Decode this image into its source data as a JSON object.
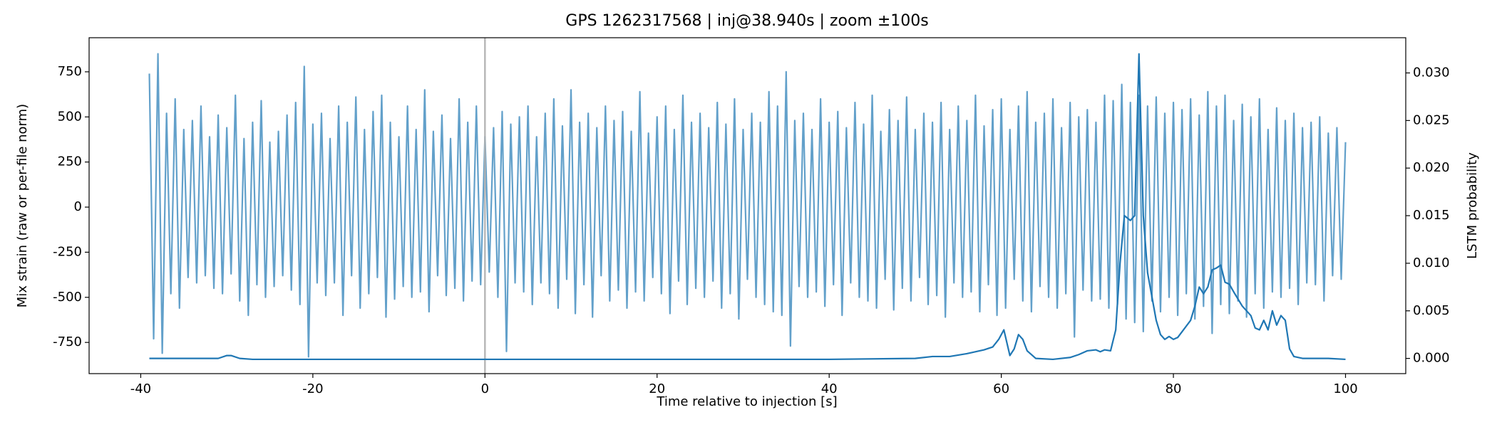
{
  "chart_data": {
    "type": "line",
    "title": "GPS 1262317568 | inj@38.940s | zoom ±100s",
    "xlabel": "Time relative to injection [s]",
    "ylabel": "Mix strain (raw or per-file norm)",
    "y2label": "LSTM probability",
    "xlim": [
      -46,
      107
    ],
    "xticks": [
      -40,
      -20,
      0,
      20,
      40,
      60,
      80,
      100
    ],
    "ylim": [
      -923,
      939
    ],
    "yticks": [
      -750,
      -500,
      -250,
      0,
      250,
      500,
      750
    ],
    "y2lim": [
      -0.0016,
      0.0337
    ],
    "y2ticks": [
      {
        "value": 0,
        "label": "0.000"
      },
      {
        "value": 0.005,
        "label": "0.005"
      },
      {
        "value": 0.01,
        "label": "0.010"
      },
      {
        "value": 0.015,
        "label": "0.015"
      },
      {
        "value": 0.02,
        "label": "0.020"
      },
      {
        "value": 0.025,
        "label": "0.025"
      },
      {
        "value": 0.03,
        "label": "0.030"
      }
    ],
    "vline": 0,
    "vline_color": "#b0b0b0",
    "series": [
      {
        "color": "#1f77b4",
        "alpha": 0.7,
        "axis": "y",
        "x": [
          -39,
          -38.5,
          -38,
          -37.5,
          -37,
          -36.5,
          -36,
          -35.5,
          -35,
          -34.5,
          -34,
          -33.5,
          -33,
          -32.5,
          -32,
          -31.5,
          -31,
          -30.5,
          -30,
          -29.5,
          -29,
          -28.5,
          -28,
          -27.5,
          -27,
          -26.5,
          -26,
          -25.5,
          -25,
          -24.5,
          -24,
          -23.5,
          -23,
          -22.5,
          -22,
          -21.5,
          -21,
          -20.5,
          -20,
          -19.5,
          -19,
          -18.5,
          -18,
          -17.5,
          -17,
          -16.5,
          -16,
          -15.5,
          -15,
          -14.5,
          -14,
          -13.5,
          -13,
          -12.5,
          -12,
          -11.5,
          -11,
          -10.5,
          -10,
          -9.5,
          -9,
          -8.5,
          -8,
          -7.5,
          -7,
          -6.5,
          -6,
          -5.5,
          -5,
          -4.5,
          -4,
          -3.5,
          -3,
          -2.5,
          -2,
          -1.5,
          -1,
          -0.5,
          0,
          0.5,
          1,
          1.5,
          2,
          2.5,
          3,
          3.5,
          4,
          4.5,
          5,
          5.5,
          6,
          6.5,
          7,
          7.5,
          8,
          8.5,
          9,
          9.5,
          10,
          10.5,
          11,
          11.5,
          12,
          12.5,
          13,
          13.5,
          14,
          14.5,
          15,
          15.5,
          16,
          16.5,
          17,
          17.5,
          18,
          18.5,
          19,
          19.5,
          20,
          20.5,
          21,
          21.5,
          22,
          22.5,
          23,
          23.5,
          24,
          24.5,
          25,
          25.5,
          26,
          26.5,
          27,
          27.5,
          28,
          28.5,
          29,
          29.5,
          30,
          30.5,
          31,
          31.5,
          32,
          32.5,
          33,
          33.5,
          34,
          34.5,
          35,
          35.5,
          36,
          36.5,
          37,
          37.5,
          38,
          38.5,
          39,
          39.5,
          40,
          40.5,
          41,
          41.5,
          42,
          42.5,
          43,
          43.5,
          44,
          44.5,
          45,
          45.5,
          46,
          46.5,
          47,
          47.5,
          48,
          48.5,
          49,
          49.5,
          50,
          50.5,
          51,
          51.5,
          52,
          52.5,
          53,
          53.5,
          54,
          54.5,
          55,
          55.5,
          56,
          56.5,
          57,
          57.5,
          58,
          58.5,
          59,
          59.5,
          60,
          60.5,
          61,
          61.5,
          62,
          62.5,
          63,
          63.5,
          64,
          64.5,
          65,
          65.5,
          66,
          66.5,
          67,
          67.5,
          68,
          68.5,
          69,
          69.5,
          70,
          70.5,
          71,
          71.5,
          72,
          72.5,
          73,
          73.5,
          74,
          74.5,
          75,
          75.5,
          76,
          76.5,
          77,
          77.5,
          78,
          78.5,
          79,
          79.5,
          80,
          80.5,
          81,
          81.5,
          82,
          82.5,
          83,
          83.5,
          84,
          84.5,
          85,
          85.5,
          86,
          86.5,
          87,
          87.5,
          88,
          88.5,
          89,
          89.5,
          90,
          90.5,
          91,
          91.5,
          92,
          92.5,
          93,
          93.5,
          94,
          94.5,
          95,
          95.5,
          96,
          96.5,
          97,
          97.5,
          98,
          98.5,
          99,
          99.5,
          100
        ],
        "values": [
          740,
          -730,
          850,
          -810,
          520,
          -480,
          600,
          -560,
          430,
          -390,
          480,
          -420,
          560,
          -380,
          390,
          -450,
          510,
          -480,
          440,
          -370,
          620,
          -520,
          380,
          -600,
          470,
          -430,
          590,
          -500,
          360,
          -440,
          420,
          -380,
          510,
          -460,
          580,
          -540,
          780,
          -830,
          460,
          -420,
          520,
          -490,
          380,
          -420,
          560,
          -600,
          470,
          -380,
          610,
          -560,
          430,
          -480,
          530,
          -390,
          620,
          -610,
          470,
          -510,
          390,
          -440,
          560,
          -500,
          430,
          -470,
          650,
          -580,
          420,
          -380,
          510,
          -490,
          380,
          -450,
          600,
          -520,
          470,
          -410,
          560,
          -430,
          390,
          -360,
          440,
          -500,
          530,
          -800,
          460,
          -420,
          500,
          -470,
          560,
          -540,
          390,
          -420,
          520,
          -480,
          600,
          -560,
          450,
          -400,
          650,
          -590,
          470,
          -430,
          520,
          -610,
          440,
          -380,
          560,
          -520,
          480,
          -460,
          530,
          -560,
          420,
          -470,
          640,
          -520,
          410,
          -390,
          500,
          -480,
          560,
          -590,
          430,
          -410,
          620,
          -540,
          470,
          -450,
          520,
          -500,
          440,
          -410,
          580,
          -560,
          460,
          -480,
          600,
          -620,
          430,
          -400,
          520,
          -500,
          470,
          -540,
          640,
          -580,
          560,
          -600,
          750,
          -770,
          480,
          -440,
          520,
          -500,
          430,
          -470,
          600,
          -550,
          470,
          -430,
          530,
          -600,
          440,
          -420,
          580,
          -500,
          460,
          -520,
          620,
          -560,
          420,
          -400,
          540,
          -570,
          480,
          -450,
          610,
          -520,
          430,
          -390,
          520,
          -540,
          470,
          -490,
          580,
          -610,
          430,
          -420,
          560,
          -500,
          480,
          -470,
          620,
          -580,
          450,
          -430,
          540,
          -600,
          600,
          -560,
          430,
          -400,
          560,
          -520,
          640,
          -580,
          470,
          -440,
          520,
          -500,
          600,
          -560,
          440,
          -480,
          580,
          -720,
          500,
          -460,
          540,
          -520,
          470,
          -510,
          620,
          -560,
          590,
          -540,
          680,
          -620,
          580,
          -640,
          620,
          -690,
          560,
          -520,
          610,
          -580,
          520,
          -500,
          580,
          -600,
          540,
          -480,
          600,
          -620,
          510,
          -550,
          640,
          -700,
          560,
          -540,
          620,
          -590,
          480,
          -520,
          570,
          -610,
          500,
          -480,
          600,
          -560,
          430,
          -470,
          550,
          -500,
          480,
          -450,
          520,
          -540,
          440,
          -420,
          470,
          -430,
          500,
          -520,
          410,
          -380,
          440,
          -400,
          360
        ]
      },
      {
        "color": "#1f77b4",
        "alpha": 1,
        "axis": "y2",
        "x": [
          -39,
          -31,
          -30,
          -29.5,
          -28.5,
          -27,
          0,
          40,
          50,
          52,
          54,
          56,
          58,
          59,
          59.7,
          60.3,
          61,
          61.5,
          62,
          62.5,
          63,
          64,
          66,
          68,
          69,
          70,
          71,
          71.5,
          72,
          72.7,
          73.3,
          73.8,
          74.3,
          75,
          75.5,
          76,
          76.5,
          77,
          78,
          78.5,
          79,
          79.5,
          80,
          80.5,
          81,
          82,
          82.5,
          83,
          83.5,
          84,
          84.5,
          85,
          85.5,
          86,
          86.5,
          87,
          88,
          89,
          89.5,
          90,
          90.5,
          91,
          91.5,
          92,
          92.5,
          93,
          93.5,
          94,
          95,
          98,
          100
        ],
        "values": [
          0,
          0,
          0.0003,
          0.0003,
          0,
          -0.0001,
          -0.0001,
          -0.0001,
          0,
          0.0002,
          0.0002,
          0.0005,
          0.0009,
          0.0012,
          0.002,
          0.003,
          0.0003,
          0.001,
          0.0025,
          0.002,
          0.0008,
          0,
          -0.0001,
          0.0001,
          0.0004,
          0.0008,
          0.0009,
          0.0007,
          0.0009,
          0.0008,
          0.003,
          0.01,
          0.015,
          0.0145,
          0.015,
          0.032,
          0.015,
          0.009,
          0.004,
          0.0025,
          0.002,
          0.0023,
          0.002,
          0.0022,
          0.0028,
          0.004,
          0.0055,
          0.0075,
          0.0068,
          0.0075,
          0.0093,
          0.0095,
          0.0098,
          0.008,
          0.0078,
          0.007,
          0.0055,
          0.0045,
          0.0032,
          0.003,
          0.004,
          0.003,
          0.005,
          0.0035,
          0.0045,
          0.004,
          0.001,
          0.0002,
          0,
          0,
          -0.0001
        ]
      }
    ]
  }
}
